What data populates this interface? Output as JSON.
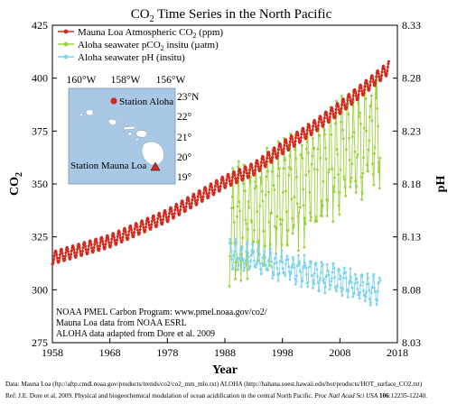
{
  "chart_data": {
    "type": "line",
    "title_prefix": "CO",
    "title_sub": "2",
    "title_suffix": " Time Series in the North Pacific",
    "xlabel": "Year",
    "ylabel_left_prefix": "CO",
    "ylabel_left_sub": "2",
    "ylabel_right": "pH",
    "xlim": [
      1958,
      2018
    ],
    "ylim_left": [
      275,
      425
    ],
    "ylim_right": [
      8.03,
      8.33
    ],
    "x_ticks": [
      "1958",
      "1968",
      "1978",
      "1988",
      "1998",
      "2008",
      "2018"
    ],
    "y_left_ticks": [
      "275",
      "300",
      "325",
      "350",
      "375",
      "400",
      "425"
    ],
    "y_right_ticks": [
      "8.03",
      "8.08",
      "8.13",
      "8.18",
      "8.23",
      "8.28",
      "8.33"
    ],
    "legend_placement": "top-left",
    "legend": [
      {
        "prefix": "Mauna Loa Atmospheric CO",
        "sub": "2",
        "suffix": " (ppm)",
        "color": "#d42a1e"
      },
      {
        "prefix": "Aloha seawater pCO",
        "sub": "2",
        "suffix": " insitu (µatm)",
        "color": "#9ad23a"
      },
      {
        "prefix": "Aloha seawater pH (insitu)",
        "sub": "",
        "suffix": "",
        "color": "#7fd3ee"
      }
    ],
    "series": [
      {
        "name": "Mauna Loa Atmospheric CO2 (ppm)",
        "axis": "left",
        "color": "#d42a1e",
        "x": [
          1958,
          1963,
          1968,
          1973,
          1978,
          1983,
          1988,
          1993,
          1998,
          2003,
          2008,
          2013,
          2016.5
        ],
        "y": [
          315,
          319,
          323,
          329,
          335,
          343,
          351,
          357,
          367,
          376,
          386,
          397,
          405
        ],
        "seasonal_amplitude": 3
      },
      {
        "name": "Aloha seawater pCO2 insitu (µatm)",
        "axis": "left",
        "color": "#9ad23a",
        "x": [
          1988.8,
          1991,
          1994,
          1997,
          2000,
          2003,
          2006,
          2009,
          2012,
          2015
        ],
        "y": [
          330,
          334,
          338,
          342,
          347,
          352,
          359,
          365,
          371,
          378
        ],
        "seasonal_amplitude": 22
      },
      {
        "name": "Aloha seawater pH (insitu)",
        "axis": "right",
        "color": "#7fd3ee",
        "x": [
          1988.8,
          1991,
          1994,
          1997,
          2000,
          2003,
          2006,
          2009,
          2012,
          2015
        ],
        "y": [
          8.115,
          8.112,
          8.108,
          8.104,
          8.1,
          8.096,
          8.091,
          8.087,
          8.082,
          8.078
        ],
        "seasonal_amplitude": 0.011
      }
    ],
    "annotation_lines": [
      "NOAA PMEL Carbon Program: www.pmel.noaa.gov/co2/",
      "Mauna Loa data from NOAA ESRL",
      "ALOHA data adapted from Dore et al. 2009"
    ]
  },
  "inset_map": {
    "lon_labels": [
      "160°W",
      "158°W",
      "156°W"
    ],
    "lat_labels": [
      "23°N",
      "22°",
      "21°",
      "20°",
      "19°"
    ],
    "station_aloha": "Station Aloha",
    "station_mauna_loa": "Station Mauna Loa",
    "water_color": "#a8c8e6",
    "land_color": "#ffffff"
  },
  "footer": {
    "line1": "Data: Mauna Loa (ftp://aftp.cmdl.noaa.gov/products/trends/co2/co2_mm_mlo.txt)  ALOHA (http://hahana.soest.hawaii.edu/hot/products/HOT_surface_CO2.txt)",
    "line2_text": "Ref: J.E. Dore et al, 2009. Physical and biogeochemical modulation of ocean acidification in the central North Pacific. ",
    "line2_journal": "Proc Natl Acad Sci USA",
    "line2_volume": "106",
    "line2_pages": ":12235-12240."
  }
}
